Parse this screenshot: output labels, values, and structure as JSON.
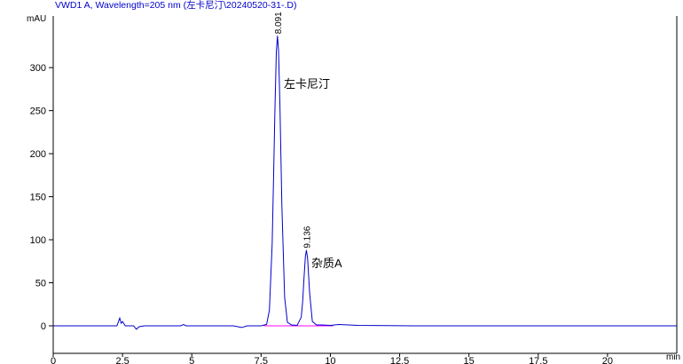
{
  "chart_data": {
    "type": "line",
    "title": "VWD1 A, Wavelength=205 nm (左卡尼汀\\20240520-31-.D)",
    "y_unit": "mAU",
    "x_unit": "min",
    "color": "#0000cc",
    "x": [
      0,
      1,
      2,
      2.3,
      2.4,
      2.45,
      2.5,
      2.6,
      2.9,
      3.0,
      3.1,
      3.3,
      4,
      4.6,
      4.7,
      4.8,
      5.5,
      6.5,
      6.8,
      7,
      7.5,
      7.7,
      7.8,
      7.9,
      7.95,
      8.0,
      8.05,
      8.091,
      8.13,
      8.18,
      8.25,
      8.35,
      8.45,
      8.6,
      8.8,
      8.95,
      9.0,
      9.05,
      9.1,
      9.136,
      9.18,
      9.25,
      9.35,
      9.5,
      9.7,
      10,
      10.3,
      11,
      13,
      16,
      19,
      22.5
    ],
    "values": [
      0,
      0,
      0,
      0,
      9,
      3,
      5,
      0,
      0,
      -4,
      -1,
      0,
      0,
      0,
      1.5,
      0,
      0,
      0,
      -2,
      0,
      0,
      1.7,
      18,
      95,
      171,
      252,
      318,
      337,
      320,
      257,
      140,
      33,
      4,
      1,
      0.5,
      10,
      28,
      56,
      81,
      88,
      78,
      39,
      5,
      1,
      1,
      0.5,
      1.5,
      0.5,
      0,
      0,
      0,
      0
    ],
    "peaks": [
      {
        "time": 8.091,
        "height": 337,
        "name": "左卡尼汀"
      },
      {
        "time": 9.136,
        "height": 88,
        "name": "杂质A"
      }
    ],
    "integration_baseline": {
      "x": [
        7.6,
        10.1
      ],
      "color": "#ff00ff"
    },
    "xlim": [
      0,
      22.5
    ],
    "ylim": [
      -32,
      360
    ],
    "xticks": [
      0,
      2.5,
      5,
      7.5,
      10,
      12.5,
      15,
      17.5,
      20
    ],
    "yticks": [
      0,
      50,
      100,
      150,
      200,
      250,
      300
    ]
  }
}
